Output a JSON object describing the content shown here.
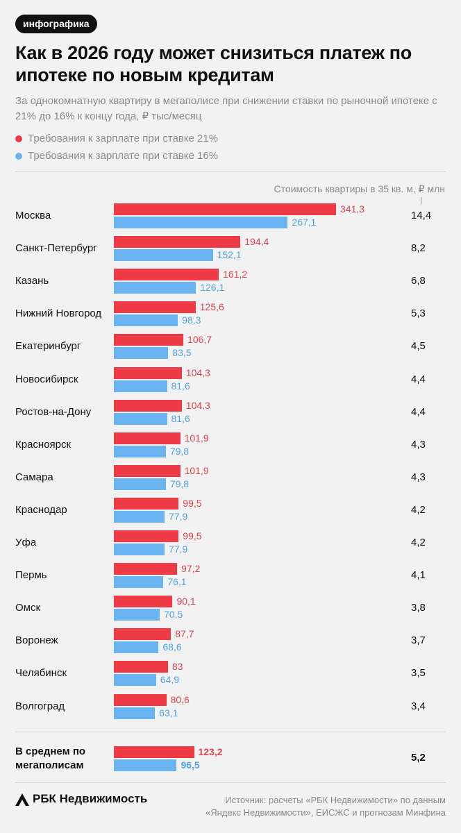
{
  "tag": "инфографика",
  "title": "Как в 2026 году может снизиться платеж по ипотеке по новым кредитам",
  "subtitle": "За однокомнатную квартиру в мегаполисе при снижении ставки по рыночной ипотеке с 21% до 16% к концу года, ₽ тыс/месяц",
  "column_header": "Стоимость квартиры в 35 кв. м, ₽ млн",
  "average_label": "В среднем по мегаполисам",
  "brand": "РБК Недвижимость",
  "source": "Источник: расчеты «РБК Недвижимости» по данным «Яндекс Недвижимости», ЕИСЖС и прогнозам Минфина",
  "colors": {
    "red": "#ef3b45",
    "blue": "#6ab4f2"
  },
  "chart_data": {
    "type": "bar",
    "orientation": "horizontal",
    "categories": [
      "Москва",
      "Санкт-Петербург",
      "Казань",
      "Нижний Новгород",
      "Екатеринбург",
      "Новосибирск",
      "Ростов-на-Дону",
      "Красноярск",
      "Самара",
      "Краснодар",
      "Уфа",
      "Пермь",
      "Омск",
      "Воронеж",
      "Челябинск",
      "Волгоград"
    ],
    "series": [
      {
        "name": "Требования к зарплате при ставке 21%",
        "color": "#ef3b45",
        "values": [
          341.3,
          194.4,
          161.2,
          125.6,
          106.7,
          104.3,
          104.3,
          101.9,
          101.9,
          99.5,
          99.5,
          97.2,
          90.1,
          87.7,
          83,
          80.6
        ],
        "labels": [
          "341,3",
          "194,4",
          "161,2",
          "125,6",
          "106,7",
          "104,3",
          "104,3",
          "101,9",
          "101,9",
          "99,5",
          "99,5",
          "97,2",
          "90,1",
          "87,7",
          "83",
          "80,6"
        ]
      },
      {
        "name": "Требования к зарплате при ставке 16%",
        "color": "#6ab4f2",
        "values": [
          267.1,
          152.1,
          126.1,
          98.3,
          83.5,
          81.6,
          81.6,
          79.8,
          79.8,
          77.9,
          77.9,
          76.1,
          70.5,
          68.6,
          64.9,
          63.1
        ],
        "labels": [
          "267,1",
          "152,1",
          "126,1",
          "98,3",
          "83,5",
          "81,6",
          "81,6",
          "79,8",
          "79,8",
          "77,9",
          "77,9",
          "76,1",
          "70,5",
          "68,6",
          "64,9",
          "63,1"
        ]
      }
    ],
    "apartment_price": [
      "14,4",
      "8,2",
      "6,8",
      "5,3",
      "4,5",
      "4,4",
      "4,4",
      "4,3",
      "4,3",
      "4,2",
      "4,2",
      "4,1",
      "3,8",
      "3,7",
      "3,5",
      "3,4"
    ],
    "average": {
      "values": [
        123.2,
        96.5
      ],
      "labels": [
        "123,2",
        "96,5"
      ],
      "price": "5,2"
    },
    "xlim": [
      0,
      341.3
    ]
  }
}
